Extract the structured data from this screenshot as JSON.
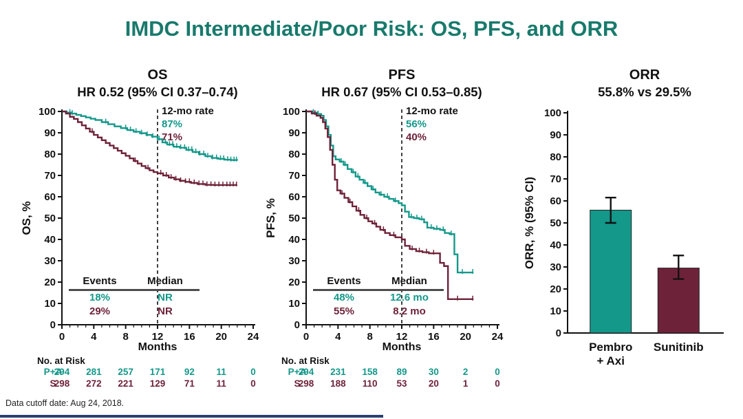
{
  "slide": {
    "title": "IMDC Intermediate/Poor Risk: OS, PFS, and ORR",
    "footer": "Data cutoff date: Aug 24, 2018.",
    "colors": {
      "title_teal": "#187a6c",
      "accent_teal": "#13988a",
      "accent_maroon": "#6e2239",
      "axis_black": "#111111"
    }
  },
  "chart_data": [
    {
      "id": "os",
      "type": "line",
      "step": true,
      "title": "OS",
      "subtitle": "HR 0.52 (95% CI 0.37–0.74)",
      "xlabel": "Months",
      "ylabel": "OS, %",
      "xlim": [
        0,
        24
      ],
      "ylim": [
        0,
        100
      ],
      "xticks": [
        0,
        4,
        8,
        12,
        16,
        20,
        24
      ],
      "ytick_step": 10,
      "minor_x_step": 1,
      "dashed_x": 12,
      "annotation": {
        "label": "12-mo rate",
        "values": [
          "87%",
          "71%"
        ]
      },
      "events_median": {
        "headers": [
          "Events",
          "Median"
        ],
        "rows": [
          [
            "18%",
            "NR"
          ],
          [
            "29%",
            "NR"
          ]
        ]
      },
      "series": [
        {
          "name": "Pembro + Axi",
          "color": "#13988a",
          "points": [
            [
              0,
              100
            ],
            [
              0.6,
              99.5
            ],
            [
              1.2,
              99
            ],
            [
              1.8,
              98.4
            ],
            [
              2.4,
              97.8
            ],
            [
              3,
              97.2
            ],
            [
              3.6,
              96.6
            ],
            [
              4.2,
              96
            ],
            [
              5,
              95
            ],
            [
              5.8,
              94
            ],
            [
              6.6,
              93
            ],
            [
              7.4,
              92.2
            ],
            [
              8.2,
              91.3
            ],
            [
              9,
              90.5
            ],
            [
              9.8,
              89.8
            ],
            [
              10.6,
              89
            ],
            [
              11.3,
              88.2
            ],
            [
              12,
              87
            ],
            [
              12.6,
              85.5
            ],
            [
              13.2,
              84.5
            ],
            [
              14,
              83.5
            ],
            [
              14.8,
              83
            ],
            [
              15.6,
              82
            ],
            [
              16.4,
              81
            ],
            [
              17.2,
              80
            ],
            [
              18,
              79
            ],
            [
              18.8,
              78.2
            ],
            [
              19.6,
              77.8
            ],
            [
              20.4,
              77.4
            ],
            [
              21.2,
              77.2
            ],
            [
              22,
              77
            ]
          ],
          "censors": [
            1.0,
            1.3,
            5.5,
            8.0,
            8.6,
            9.3,
            10.0,
            10.7,
            11.4,
            12.2,
            13.0,
            13.5,
            13.9,
            14.4,
            14.9,
            15.4,
            15.9,
            16.3,
            16.8,
            17.3,
            17.8,
            18.3,
            18.9,
            19.4,
            19.9,
            20.3,
            20.8,
            21.2,
            21.6,
            21.9
          ]
        },
        {
          "name": "Sunitinib",
          "color": "#6e2239",
          "points": [
            [
              0,
              100
            ],
            [
              0.5,
              99
            ],
            [
              1,
              97.5
            ],
            [
              1.5,
              96.5
            ],
            [
              2,
              95
            ],
            [
              2.5,
              93.5
            ],
            [
              3,
              92
            ],
            [
              3.5,
              90.5
            ],
            [
              4,
              89
            ],
            [
              4.5,
              87.8
            ],
            [
              5,
              86.5
            ],
            [
              5.5,
              85.2
            ],
            [
              6,
              84
            ],
            [
              6.5,
              82.8
            ],
            [
              7,
              81.6
            ],
            [
              7.5,
              80.4
            ],
            [
              8,
              79.2
            ],
            [
              8.5,
              78
            ],
            [
              9,
              76.8
            ],
            [
              9.5,
              75.6
            ],
            [
              10,
              74.4
            ],
            [
              10.5,
              73.4
            ],
            [
              11,
              72.4
            ],
            [
              11.5,
              71.6
            ],
            [
              12,
              71
            ],
            [
              12.7,
              70
            ],
            [
              13.4,
              69
            ],
            [
              14.1,
              68.2
            ],
            [
              14.8,
              67.5
            ],
            [
              15.5,
              67
            ],
            [
              16.2,
              66.5
            ],
            [
              17,
              66
            ],
            [
              18,
              65.6
            ],
            [
              19,
              65.5
            ],
            [
              22,
              65.5
            ]
          ],
          "censors": [
            3.8,
            9.2,
            10.8,
            12.4,
            13.1,
            13.7,
            14.3,
            14.9,
            15.5,
            16.0,
            16.6,
            17.2,
            17.7,
            18.2,
            18.7,
            19.2,
            19.7,
            20.2,
            20.7,
            21.1,
            21.5,
            21.9
          ]
        }
      ],
      "risk_table": {
        "label": "No. at Risk",
        "rows": [
          {
            "label": "P+A",
            "color": "#13988a",
            "values": [
              294,
              281,
              257,
              171,
              92,
              11,
              0
            ]
          },
          {
            "label": "S",
            "color": "#6e2239",
            "values": [
              298,
              272,
              221,
              129,
              71,
              11,
              0
            ]
          }
        ]
      }
    },
    {
      "id": "pfs",
      "type": "line",
      "step": true,
      "title": "PFS",
      "subtitle": "HR 0.67 (95% CI 0.53–0.85)",
      "xlabel": "Months",
      "ylabel": "PFS, %",
      "xlim": [
        0,
        24
      ],
      "ylim": [
        0,
        100
      ],
      "xticks": [
        0,
        4,
        8,
        12,
        16,
        20,
        24
      ],
      "ytick_step": 10,
      "minor_x_step": 1,
      "dashed_x": 12,
      "annotation": {
        "label": "12-mo rate",
        "values": [
          "56%",
          "40%"
        ]
      },
      "events_median": {
        "headers": [
          "Events",
          "Median"
        ],
        "rows": [
          [
            "48%",
            "12.6 mo"
          ],
          [
            "55%",
            "8.2 mo"
          ]
        ]
      },
      "series": [
        {
          "name": "Pembro + Axi",
          "color": "#13988a",
          "points": [
            [
              0,
              100
            ],
            [
              0.8,
              99.5
            ],
            [
              1.4,
              98.8
            ],
            [
              1.9,
              98
            ],
            [
              2.2,
              96
            ],
            [
              2.5,
              93
            ],
            [
              2.8,
              89
            ],
            [
              3.1,
              84
            ],
            [
              3.4,
              79
            ],
            [
              3.7,
              77.5
            ],
            [
              4.2,
              76.5
            ],
            [
              4.7,
              75
            ],
            [
              5.2,
              73
            ],
            [
              5.7,
              71.5
            ],
            [
              6.2,
              69.5
            ],
            [
              6.7,
              68
            ],
            [
              7.2,
              66.5
            ],
            [
              7.7,
              65
            ],
            [
              8.2,
              63.5
            ],
            [
              8.7,
              62
            ],
            [
              9.2,
              61
            ],
            [
              9.8,
              60
            ],
            [
              10.4,
              59
            ],
            [
              11,
              58
            ],
            [
              11.6,
              57
            ],
            [
              12,
              56
            ],
            [
              12.4,
              53
            ],
            [
              12.9,
              50.5
            ],
            [
              13.5,
              50
            ],
            [
              14.2,
              49.5
            ],
            [
              14.8,
              48
            ],
            [
              15.2,
              45.5
            ],
            [
              16,
              45
            ],
            [
              16.8,
              44.5
            ],
            [
              17.4,
              43
            ],
            [
              18,
              42.5
            ],
            [
              18.6,
              33
            ],
            [
              19,
              24.5
            ],
            [
              21,
              24.5
            ]
          ],
          "censors": [
            0.9,
            1.5,
            4.4,
            4.9,
            5.9,
            6.5,
            7.4,
            8.4,
            9.4,
            10.2,
            11.2,
            13.2,
            13.9,
            14.5,
            15.7,
            16.4,
            17.2,
            18.2,
            19.6,
            20.9
          ]
        },
        {
          "name": "Sunitinib",
          "color": "#6e2239",
          "points": [
            [
              0,
              100
            ],
            [
              0.7,
              99
            ],
            [
              1.3,
              98
            ],
            [
              1.8,
              97
            ],
            [
              2.1,
              95
            ],
            [
              2.4,
              92
            ],
            [
              2.7,
              88
            ],
            [
              3,
              82
            ],
            [
              3.3,
              75
            ],
            [
              3.6,
              68
            ],
            [
              3.9,
              63
            ],
            [
              4.3,
              61.5
            ],
            [
              4.8,
              59.5
            ],
            [
              5.3,
              57.5
            ],
            [
              5.8,
              55.5
            ],
            [
              6.3,
              53.5
            ],
            [
              6.8,
              51.5
            ],
            [
              7.3,
              50
            ],
            [
              7.8,
              48.5
            ],
            [
              8.3,
              47.5
            ],
            [
              8.8,
              46
            ],
            [
              9.3,
              44.5
            ],
            [
              9.9,
              43
            ],
            [
              10.5,
              42
            ],
            [
              11.2,
              41
            ],
            [
              12,
              40
            ],
            [
              12.4,
              37
            ],
            [
              13,
              35.5
            ],
            [
              13.8,
              34.5
            ],
            [
              14.6,
              34
            ],
            [
              15.4,
              33.5
            ],
            [
              16.2,
              33.5
            ],
            [
              16.8,
              29
            ],
            [
              17.3,
              27.5
            ],
            [
              17.8,
              12
            ],
            [
              21,
              12
            ]
          ],
          "censors": [
            1.1,
            4.5,
            5.5,
            6.6,
            7.6,
            8.6,
            9.7,
            11.0,
            13.3,
            14.2,
            15.1,
            16.0,
            19.0,
            20.9
          ]
        }
      ],
      "risk_table": {
        "label": "No. at Risk",
        "rows": [
          {
            "label": "P+A",
            "color": "#13988a",
            "values": [
              294,
              231,
              158,
              89,
              30,
              2,
              0
            ]
          },
          {
            "label": "S",
            "color": "#6e2239",
            "values": [
              298,
              188,
              110,
              53,
              20,
              1,
              0
            ]
          }
        ]
      }
    },
    {
      "id": "orr",
      "type": "bar",
      "title": "ORR",
      "subtitle": "55.8% vs 29.5%",
      "ylabel": "ORR, % (95% CI)",
      "ylim": [
        0,
        100
      ],
      "ytick_step": 10,
      "categories": [
        [
          "Pembro",
          "+ Axi"
        ],
        [
          "Sunitinib"
        ]
      ],
      "values": [
        55.8,
        29.5
      ],
      "ci_low": [
        50.0,
        24.5
      ],
      "ci_high": [
        61.5,
        35.2
      ],
      "colors": [
        "#13988a",
        "#6e2239"
      ],
      "bar_pos": [
        0.28,
        0.72
      ]
    }
  ]
}
